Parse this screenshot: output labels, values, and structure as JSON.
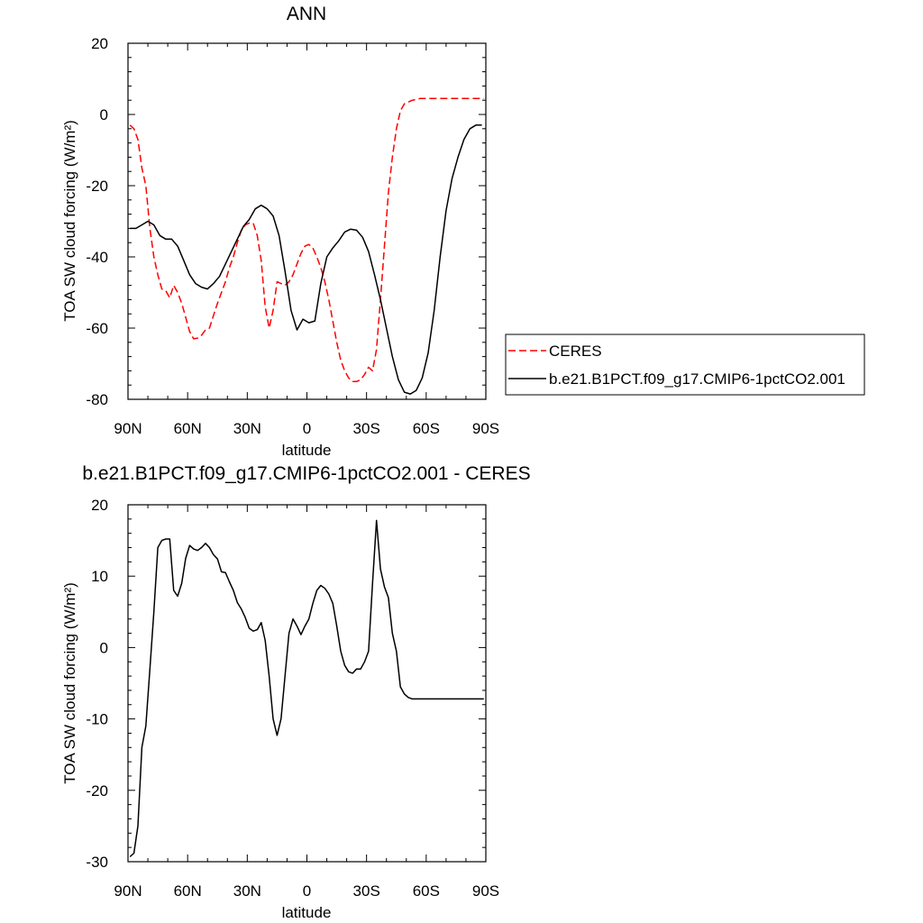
{
  "chart_data": [
    {
      "type": "line",
      "title": "ANN",
      "xlabel": "latitude",
      "ylabel": "TOA SW cloud forcing (W/m²)",
      "xlim": [
        -90,
        90
      ],
      "ylim": [
        -80,
        20
      ],
      "x_ticks": [
        -90,
        -60,
        -30,
        0,
        30,
        60,
        90
      ],
      "x_tick_labels": [
        "90N",
        "60N",
        "30N",
        "0",
        "30S",
        "60S",
        "90S"
      ],
      "y_ticks": [
        20,
        0,
        -20,
        -40,
        -60,
        -80
      ],
      "y_tick_labels": [
        "20",
        "0",
        "-20",
        "-40",
        "-60",
        "-80"
      ],
      "legend_position": "right",
      "series": [
        {
          "name": "CERES",
          "color": "#ff0000",
          "dash": "dashed",
          "x": [
            -89,
            -87,
            -85,
            -83,
            -81,
            -79,
            -77,
            -75,
            -73,
            -71,
            -69,
            -67,
            -65,
            -63,
            -61,
            -59,
            -57,
            -55,
            -53,
            -51,
            -49,
            -47,
            -45,
            -43,
            -41,
            -39,
            -37,
            -35,
            -33,
            -31,
            -29,
            -27,
            -25,
            -23,
            -21,
            -19,
            -17,
            -15,
            -13,
            -11,
            -9,
            -7,
            -5,
            -3,
            -1,
            1,
            3,
            5,
            7,
            9,
            11,
            13,
            15,
            17,
            19,
            21,
            23,
            25,
            27,
            29,
            31,
            33,
            35,
            37,
            39,
            41,
            43,
            45,
            47,
            49,
            51,
            53,
            55,
            57,
            59,
            61,
            63,
            65,
            67,
            69,
            71,
            73,
            75,
            77,
            79,
            81,
            83,
            85,
            87,
            89
          ],
          "y": [
            -3,
            -4,
            -7,
            -15,
            -20,
            -32,
            -40,
            -45,
            -49,
            -49.5,
            -51.5,
            -48,
            -50,
            -53,
            -57,
            -61,
            -63,
            -62.8,
            -62,
            -60.5,
            -60,
            -56.5,
            -53,
            -50,
            -47,
            -43,
            -40,
            -36,
            -32.5,
            -31,
            -30.5,
            -30.5,
            -34,
            -41,
            -54,
            -60,
            -55,
            -47,
            -47.5,
            -48,
            -47,
            -45,
            -42,
            -39,
            -37,
            -36.5,
            -37.5,
            -40,
            -43,
            -47,
            -52,
            -58,
            -64,
            -69,
            -72,
            -74,
            -75,
            -75,
            -74.5,
            -73,
            -71,
            -72,
            -66,
            -52,
            -37,
            -22,
            -12,
            -4,
            1,
            3,
            3.5,
            4,
            4.2,
            4.5,
            4.5,
            4.5,
            4.5,
            4.5,
            4.5,
            4.5,
            4.5,
            4.5,
            4.5,
            4.5,
            4.5,
            4.5,
            4.5,
            4.5,
            4.5,
            4.5
          ]
        },
        {
          "name": "b.e21.B1PCT.f09_g17.CMIP6-1pctCO2.001",
          "color": "#000000",
          "dash": "solid",
          "x": [
            -89,
            -86,
            -83,
            -80,
            -77,
            -74,
            -71,
            -68,
            -65,
            -62,
            -59,
            -56,
            -53,
            -50,
            -47,
            -44,
            -41,
            -38,
            -35,
            -32,
            -29,
            -26,
            -23,
            -20,
            -17,
            -14,
            -11,
            -8,
            -5,
            -2,
            1,
            4,
            7,
            10,
            13,
            16,
            19,
            22,
            25,
            28,
            31,
            34,
            37,
            40,
            43,
            46,
            49,
            52,
            55,
            58,
            61,
            64,
            67,
            70,
            73,
            76,
            79,
            82,
            85,
            88
          ],
          "y": [
            -32,
            -32,
            -31,
            -30,
            -31,
            -34,
            -35,
            -35,
            -37,
            -41,
            -45,
            -47.5,
            -48.5,
            -49,
            -47.5,
            -45.5,
            -42,
            -38.5,
            -35,
            -31.5,
            -29.5,
            -26.5,
            -25.5,
            -26.5,
            -28.5,
            -34,
            -44,
            -55,
            -60.5,
            -57.5,
            -58.5,
            -58,
            -47.5,
            -40,
            -37.5,
            -35.5,
            -33,
            -32.2,
            -32.5,
            -34.5,
            -38.5,
            -45,
            -52,
            -60,
            -68,
            -74.5,
            -78,
            -78.5,
            -77.5,
            -74,
            -67,
            -55,
            -40,
            -27,
            -18,
            -12,
            -7,
            -4,
            -3,
            -3
          ]
        }
      ]
    },
    {
      "type": "line",
      "title": "b.e21.B1PCT.f09_g17.CMIP6-1pctCO2.001 - CERES",
      "xlabel": "latitude",
      "ylabel": "TOA SW cloud forcing (W/m²)",
      "xlim": [
        -90,
        90
      ],
      "ylim": [
        -30,
        20
      ],
      "x_ticks": [
        -90,
        -60,
        -30,
        0,
        30,
        60,
        90
      ],
      "x_tick_labels": [
        "90N",
        "60N",
        "30N",
        "0",
        "30S",
        "60S",
        "90S"
      ],
      "y_ticks": [
        20,
        10,
        0,
        -10,
        -20,
        -30
      ],
      "y_tick_labels": [
        "20",
        "10",
        "0",
        "-10",
        "-20",
        "-30"
      ],
      "series": [
        {
          "color": "#000000",
          "dash": "solid",
          "x": [
            -89,
            -87,
            -85,
            -83,
            -81,
            -79,
            -77,
            -75,
            -73,
            -71,
            -69,
            -67,
            -65,
            -63,
            -61,
            -59,
            -57,
            -55,
            -53,
            -51,
            -49,
            -47,
            -45,
            -43,
            -41,
            -39,
            -37,
            -35,
            -33,
            -31,
            -29,
            -27,
            -25,
            -23,
            -21,
            -19,
            -17,
            -15,
            -13,
            -11,
            -9,
            -7,
            -5,
            -3,
            -1,
            1,
            3,
            5,
            7,
            9,
            11,
            13,
            15,
            17,
            19,
            21,
            23,
            25,
            27,
            29,
            31,
            33,
            35,
            37,
            39,
            41,
            43,
            45,
            47,
            49,
            51,
            53,
            55,
            57,
            59,
            61,
            63,
            65,
            67,
            69,
            71,
            73,
            75,
            77,
            79,
            81,
            83,
            85,
            87,
            89
          ],
          "y": [
            -29.3,
            -28.8,
            -25,
            -14,
            -11,
            -3,
            5,
            14,
            15,
            15.2,
            15.2,
            8,
            7.2,
            9,
            12.5,
            14.3,
            13.8,
            13.6,
            14,
            14.6,
            14,
            13,
            12.4,
            10.6,
            10.5,
            9.2,
            8,
            6.3,
            5.4,
            4.2,
            2.7,
            2.3,
            2.5,
            3.5,
            1,
            -4,
            -10,
            -12.3,
            -10,
            -4,
            2,
            4,
            3,
            1.8,
            3,
            4,
            6.2,
            8,
            8.7,
            8.3,
            7.5,
            6.2,
            3,
            -0.5,
            -2.5,
            -3.4,
            -3.6,
            -3,
            -3,
            -2,
            -0.5,
            9,
            17.8,
            11,
            8.5,
            7,
            2,
            -0.5,
            -5.5,
            -6.5,
            -7,
            -7.2,
            -7.2,
            -7.2,
            -7.2,
            -7.2,
            -7.2,
            -7.2,
            -7.2,
            -7.2,
            -7.2,
            -7.2,
            -7.2,
            -7.2,
            -7.2,
            -7.2,
            -7.2,
            -7.2,
            -7.2,
            -7.2
          ]
        }
      ]
    }
  ]
}
